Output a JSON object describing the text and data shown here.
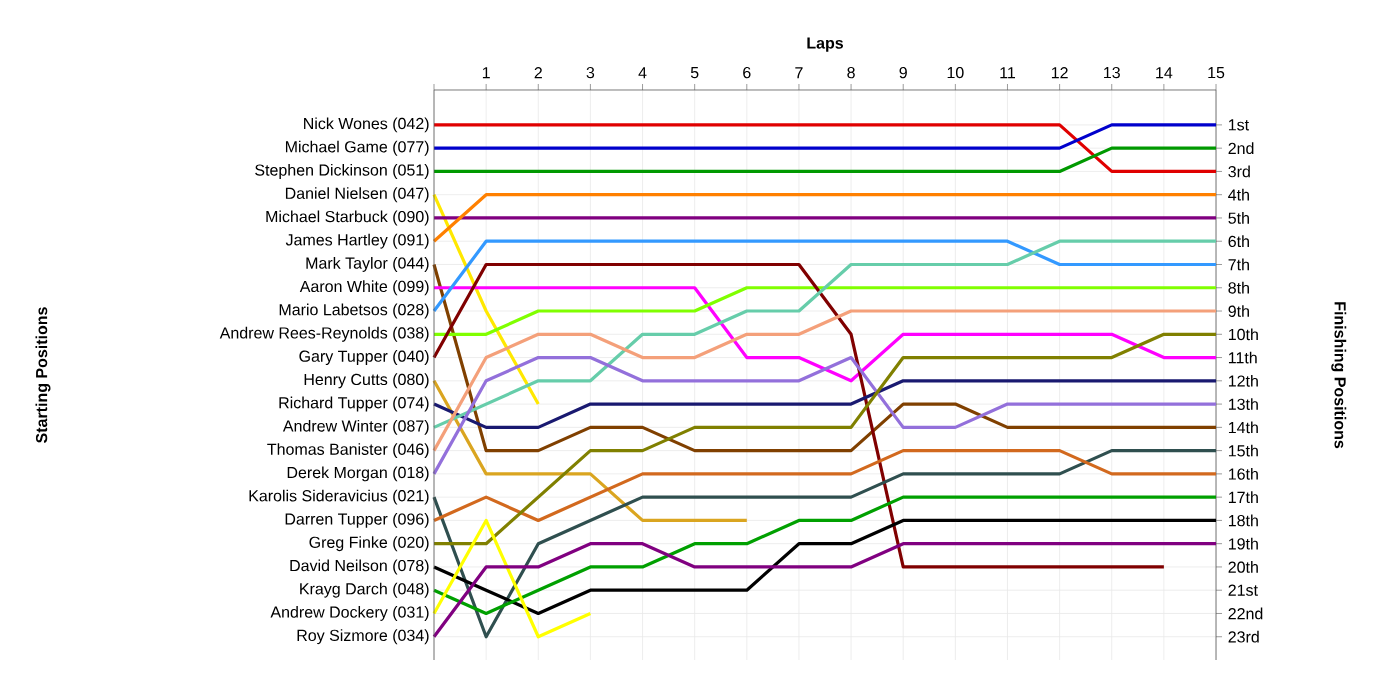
{
  "chart_data": {
    "type": "line",
    "xlabel": "Laps",
    "ylabel": "Finishing Positions",
    "annotations": [
      "Starting Positions"
    ],
    "grid": true,
    "legend": "left",
    "x": [
      0,
      1,
      2,
      3,
      4,
      5,
      6,
      7,
      8,
      9,
      10,
      11,
      12,
      13,
      14,
      15
    ],
    "xlim": [
      0,
      15
    ],
    "xticks": [
      {
        "value": 0,
        "label": null
      },
      1,
      2,
      3,
      4,
      5,
      6,
      7,
      8,
      9,
      10,
      11,
      12,
      13,
      14,
      15
    ],
    "ylim": [
      24,
      -0.5
    ],
    "yticks": [
      {
        "value": 1,
        "label": "1st"
      },
      {
        "value": 2,
        "label": "2nd"
      },
      {
        "value": 3,
        "label": "3rd"
      },
      {
        "value": 4,
        "label": "4th"
      },
      {
        "value": 5,
        "label": "5th"
      },
      {
        "value": 6,
        "label": "6th"
      },
      {
        "value": 7,
        "label": "7th"
      },
      {
        "value": 8,
        "label": "8th"
      },
      {
        "value": 9,
        "label": "9th"
      },
      {
        "value": 10,
        "label": "10th"
      },
      {
        "value": 11,
        "label": "11th"
      },
      {
        "value": 12,
        "label": "12th"
      },
      {
        "value": 13,
        "label": "13th"
      },
      {
        "value": 14,
        "label": "14th"
      },
      {
        "value": 15,
        "label": "15th"
      },
      {
        "value": 16,
        "label": "16th"
      },
      {
        "value": 17,
        "label": "17th"
      },
      {
        "value": 18,
        "label": "18th"
      },
      {
        "value": 19,
        "label": "19th"
      },
      {
        "value": 20,
        "label": "20th"
      },
      {
        "value": 21,
        "label": "21st"
      },
      {
        "value": 22,
        "label": "22nd"
      },
      {
        "value": 23,
        "label": "23rd"
      }
    ],
    "series": [
      {
        "name": "Nick Wones (042)",
        "color": "#e00000",
        "values": [
          1,
          1,
          1,
          1,
          1,
          1,
          1,
          1,
          1,
          1,
          1,
          1,
          1,
          3,
          3,
          3
        ]
      },
      {
        "name": "Michael Game (077)",
        "color": "#0000cc",
        "values": [
          2,
          2,
          2,
          2,
          2,
          2,
          2,
          2,
          2,
          2,
          2,
          2,
          2,
          1,
          1,
          1
        ]
      },
      {
        "name": "Stephen Dickinson (051)",
        "color": "#009900",
        "values": [
          3,
          3,
          3,
          3,
          3,
          3,
          3,
          3,
          3,
          3,
          3,
          3,
          3,
          2,
          2,
          2
        ]
      },
      {
        "name": "Daniel Nielsen (047)",
        "color": "#ffe800",
        "values": [
          4,
          9,
          13,
          null,
          null,
          null,
          null,
          null,
          null,
          null,
          null,
          null,
          null,
          null,
          null,
          null
        ]
      },
      {
        "name": "Michael Starbuck (090)",
        "color": "#800080",
        "values": [
          5,
          5,
          5,
          5,
          5,
          5,
          5,
          5,
          5,
          5,
          5,
          5,
          5,
          5,
          5,
          5
        ]
      },
      {
        "name": "James Hartley (091)",
        "color": "#ff8000",
        "values": [
          6,
          4,
          4,
          4,
          4,
          4,
          4,
          4,
          4,
          4,
          4,
          4,
          4,
          4,
          4,
          4
        ]
      },
      {
        "name": "Mark Taylor (044)",
        "color": "#804000",
        "values": [
          7,
          15,
          15,
          14,
          14,
          15,
          15,
          15,
          15,
          13,
          13,
          14,
          14,
          14,
          14,
          14
        ]
      },
      {
        "name": "Aaron White (099)",
        "color": "#ff00ff",
        "values": [
          8,
          8,
          8,
          8,
          8,
          8,
          11,
          11,
          12,
          10,
          10,
          10,
          10,
          10,
          11,
          11
        ]
      },
      {
        "name": "Mario Labetsos (028)",
        "color": "#3399ff",
        "values": [
          9,
          6,
          6,
          6,
          6,
          6,
          6,
          6,
          6,
          6,
          6,
          6,
          7,
          7,
          7,
          7
        ]
      },
      {
        "name": "Andrew Rees-Reynolds (038)",
        "color": "#80ff00",
        "values": [
          10,
          10,
          9,
          9,
          9,
          9,
          8,
          8,
          8,
          8,
          8,
          8,
          8,
          8,
          8,
          8
        ]
      },
      {
        "name": "Gary Tupper (040)",
        "color": "#800000",
        "values": [
          11,
          7,
          7,
          7,
          7,
          7,
          7,
          7,
          10,
          20,
          20,
          20,
          20,
          20,
          20,
          null
        ]
      },
      {
        "name": "Henry Cutts (080)",
        "color": "#daa520",
        "values": [
          12,
          16,
          16,
          16,
          18,
          18,
          18,
          null,
          null,
          null,
          null,
          null,
          null,
          null,
          null,
          null
        ]
      },
      {
        "name": "Richard Tupper (074)",
        "color": "#191970",
        "values": [
          13,
          14,
          14,
          13,
          13,
          13,
          13,
          13,
          13,
          12,
          12,
          12,
          12,
          12,
          12,
          12
        ]
      },
      {
        "name": "Andrew Winter (087)",
        "color": "#66cdaa",
        "values": [
          14,
          13,
          12,
          12,
          10,
          10,
          9,
          9,
          7,
          7,
          7,
          7,
          6,
          6,
          6,
          6
        ]
      },
      {
        "name": "Thomas Banister (046)",
        "color": "#f4a07a",
        "values": [
          15,
          11,
          10,
          10,
          11,
          11,
          10,
          10,
          9,
          9,
          9,
          9,
          9,
          9,
          9,
          9
        ]
      },
      {
        "name": "Derek Morgan (018)",
        "color": "#9370db",
        "values": [
          16,
          12,
          11,
          11,
          12,
          12,
          12,
          12,
          11,
          14,
          14,
          13,
          13,
          13,
          13,
          13
        ]
      },
      {
        "name": "Karolis Sideravicius (021)",
        "color": "#2f4f4f",
        "values": [
          17,
          23,
          19,
          18,
          17,
          17,
          17,
          17,
          17,
          16,
          16,
          16,
          16,
          15,
          15,
          15
        ]
      },
      {
        "name": "Darren Tupper (096)",
        "color": "#d2691e",
        "values": [
          18,
          17,
          18,
          17,
          16,
          16,
          16,
          16,
          16,
          15,
          15,
          15,
          15,
          16,
          16,
          16
        ]
      },
      {
        "name": "Greg Finke (020)",
        "color": "#808000",
        "values": [
          19,
          19,
          17,
          15,
          15,
          14,
          14,
          14,
          14,
          11,
          11,
          11,
          11,
          11,
          10,
          10
        ]
      },
      {
        "name": "David Neilson (078)",
        "color": "#000000",
        "values": [
          20,
          21,
          22,
          21,
          21,
          21,
          21,
          19,
          19,
          18,
          18,
          18,
          18,
          18,
          18,
          18
        ]
      },
      {
        "name": "Krayg Darch (048)",
        "color": "#00a000",
        "values": [
          21,
          22,
          21,
          20,
          20,
          19,
          19,
          18,
          18,
          17,
          17,
          17,
          17,
          17,
          17,
          17
        ]
      },
      {
        "name": "Andrew Dockery (031)",
        "color": "#ffff00",
        "values": [
          22,
          18,
          23,
          22,
          null,
          null,
          null,
          null,
          null,
          null,
          null,
          null,
          null,
          null,
          null,
          null
        ]
      },
      {
        "name": "Roy Sizmore (034)",
        "color": "#800080",
        "values": [
          23,
          20,
          20,
          19,
          19,
          20,
          20,
          20,
          20,
          19,
          19,
          19,
          19,
          19,
          19,
          19
        ]
      }
    ]
  }
}
